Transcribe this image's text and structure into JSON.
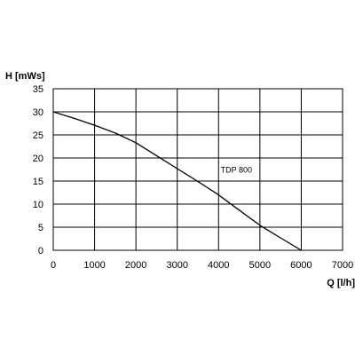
{
  "chart_data": {
    "type": "line",
    "title": "",
    "ylabel": "H [mWs]",
    "xlabel": "Q [l/h]",
    "xlim": [
      0,
      7000
    ],
    "ylim": [
      0,
      35
    ],
    "xticks": [
      0,
      1000,
      2000,
      3000,
      4000,
      5000,
      6000,
      7000
    ],
    "yticks": [
      0,
      5,
      10,
      15,
      20,
      25,
      30,
      35
    ],
    "grid": true,
    "series": [
      {
        "name": "TDP 800",
        "color": "#000000",
        "x": [
          0,
          500,
          1000,
          1500,
          2000,
          2500,
          3000,
          3500,
          4000,
          4500,
          5000,
          5500,
          6000
        ],
        "y": [
          30,
          28.6,
          27.1,
          25.4,
          23.3,
          20.5,
          17.7,
          14.9,
          12.0,
          8.7,
          5.4,
          2.7,
          0
        ]
      }
    ]
  }
}
